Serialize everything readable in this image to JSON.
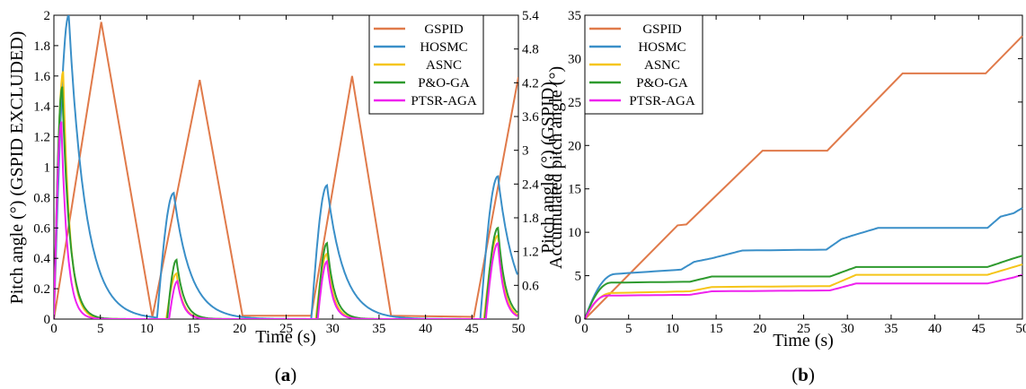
{
  "chart_data": [
    {
      "type": "line",
      "caption": "a",
      "xlabel": "Time (s)",
      "ylabel": "Pitch angle (°) (GSPID EXCLUDED)",
      "ylabel_right": "Pitch angle (°) (GSPID)",
      "xlim": [
        0,
        50
      ],
      "ylim": [
        0,
        2
      ],
      "ylim_right": [
        0,
        5.4
      ],
      "xticks": [
        "0",
        "5",
        "10",
        "15",
        "20",
        "25",
        "30",
        "35",
        "40",
        "45",
        "50"
      ],
      "yticks": [
        "0",
        "0.2",
        "0.4",
        "0.6",
        "0.8",
        "1",
        "1.2",
        "1.4",
        "1.6",
        "1.8",
        "2"
      ],
      "yticks_right": [
        "0.6",
        "1.2",
        "1.8",
        "2.4",
        "3",
        "3.6",
        "4.2",
        "4.8",
        "5.4"
      ],
      "legend_position": "top-right",
      "series": [
        {
          "name": "GSPID",
          "axis": "right",
          "color": "#e07a4a",
          "x": [
            0,
            5.1,
            10.6,
            15.7,
            20.3,
            35.7,
            45.2,
            50
          ],
          "y": [
            0,
            5.28,
            0.04,
            4.25,
            0.06,
            0.06,
            0.04,
            4.3
          ],
          "extra": [
            [
              20.3,
              0.06
            ],
            [
              27.7,
              0.06
            ],
            [
              32.1,
              4.32
            ],
            [
              36.3,
              0.06
            ]
          ]
        },
        {
          "name": "HOSMC",
          "axis": "left",
          "color": "#3a8fc8",
          "peaks": [
            [
              1.6,
              2.0
            ],
            [
              12.9,
              0.83
            ],
            [
              29.4,
              0.88
            ],
            [
              47.8,
              0.94
            ]
          ]
        },
        {
          "name": "ASNC",
          "axis": "left",
          "color": "#f5c518",
          "peaks": [
            [
              1.0,
              1.63
            ],
            [
              13.2,
              0.3
            ],
            [
              29.4,
              0.43
            ],
            [
              47.8,
              0.55
            ]
          ]
        },
        {
          "name": "P&O-GA",
          "axis": "left",
          "color": "#2e9a2e",
          "peaks": [
            [
              0.9,
              1.53
            ],
            [
              13.2,
              0.39
            ],
            [
              29.4,
              0.5
            ],
            [
              47.8,
              0.6
            ]
          ]
        },
        {
          "name": "PTSR-AGA",
          "axis": "left",
          "color": "#ee22ee",
          "peaks": [
            [
              0.8,
              1.3
            ],
            [
              13.3,
              0.25
            ],
            [
              29.4,
              0.38
            ],
            [
              47.8,
              0.5
            ]
          ]
        }
      ]
    },
    {
      "type": "line",
      "caption": "b",
      "xlabel": "Time (s)",
      "ylabel": "Accumulated pitch angle (°)",
      "xlim": [
        0,
        50
      ],
      "ylim": [
        0,
        35
      ],
      "xticks": [
        "0",
        "5",
        "10",
        "15",
        "20",
        "25",
        "30",
        "35",
        "40",
        "45",
        "50"
      ],
      "yticks": [
        "0",
        "5",
        "10",
        "15",
        "20",
        "25",
        "30",
        "35"
      ],
      "legend_position": "top-left",
      "series": [
        {
          "name": "GSPID",
          "color": "#e07a4a",
          "x": [
            0,
            10.6,
            11.6,
            20.3,
            27.7,
            36.3,
            45.8,
            50
          ],
          "y": [
            0,
            10.8,
            10.9,
            19.4,
            19.4,
            28.3,
            28.3,
            32.6
          ]
        },
        {
          "name": "HOSMC",
          "color": "#3a8fc8",
          "x": [
            0,
            3.5,
            11.0,
            12.5,
            14.5,
            18.0,
            27.6,
            29.3,
            30.5,
            33.5,
            46.0,
            47.5,
            49.0,
            50
          ],
          "y": [
            0,
            5.2,
            5.7,
            6.6,
            7.0,
            7.9,
            8.0,
            9.2,
            9.6,
            10.5,
            10.5,
            11.8,
            12.2,
            12.8
          ]
        },
        {
          "name": "ASNC",
          "color": "#f5c518",
          "x": [
            0,
            3.0,
            12.0,
            14.5,
            28.0,
            31.0,
            46.0,
            49.0,
            50
          ],
          "y": [
            0,
            3.0,
            3.2,
            3.7,
            3.8,
            5.1,
            5.1,
            6.0,
            6.3
          ]
        },
        {
          "name": "P&O-GA",
          "color": "#2e9a2e",
          "x": [
            0,
            3.0,
            12.0,
            14.5,
            28.0,
            31.0,
            46.0,
            49.0,
            50
          ],
          "y": [
            0,
            4.2,
            4.3,
            4.9,
            4.9,
            6.0,
            6.0,
            7.0,
            7.3
          ]
        },
        {
          "name": "PTSR-AGA",
          "color": "#ee22ee",
          "x": [
            0,
            2.5,
            12.0,
            14.5,
            28.0,
            31.0,
            46.0,
            49.0,
            50
          ],
          "y": [
            0,
            2.7,
            2.8,
            3.2,
            3.3,
            4.1,
            4.1,
            4.8,
            5.1
          ]
        }
      ]
    }
  ]
}
